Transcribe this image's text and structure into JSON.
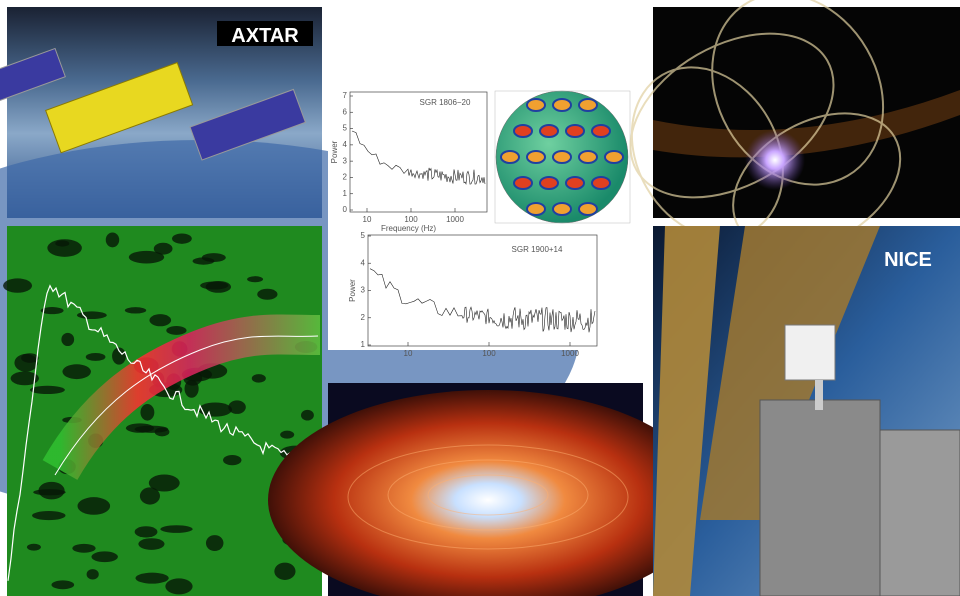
{
  "panels": {
    "axtar": {
      "label": "AXTAR"
    },
    "nice": {
      "label": "NICE"
    }
  },
  "plots": [
    {
      "title": "SGR 1806−20",
      "y_label": "Power",
      "x_label": "Frequency (Hz)",
      "yticks": [
        0,
        1,
        2,
        3,
        4,
        5,
        6,
        7
      ],
      "xticks": [
        10,
        100,
        1000
      ]
    },
    {
      "title": "SGR 1900+14",
      "y_label": "Power",
      "yticks": [
        1,
        2,
        3,
        4,
        5
      ],
      "xticks": [
        10,
        100,
        1000
      ]
    }
  ]
}
